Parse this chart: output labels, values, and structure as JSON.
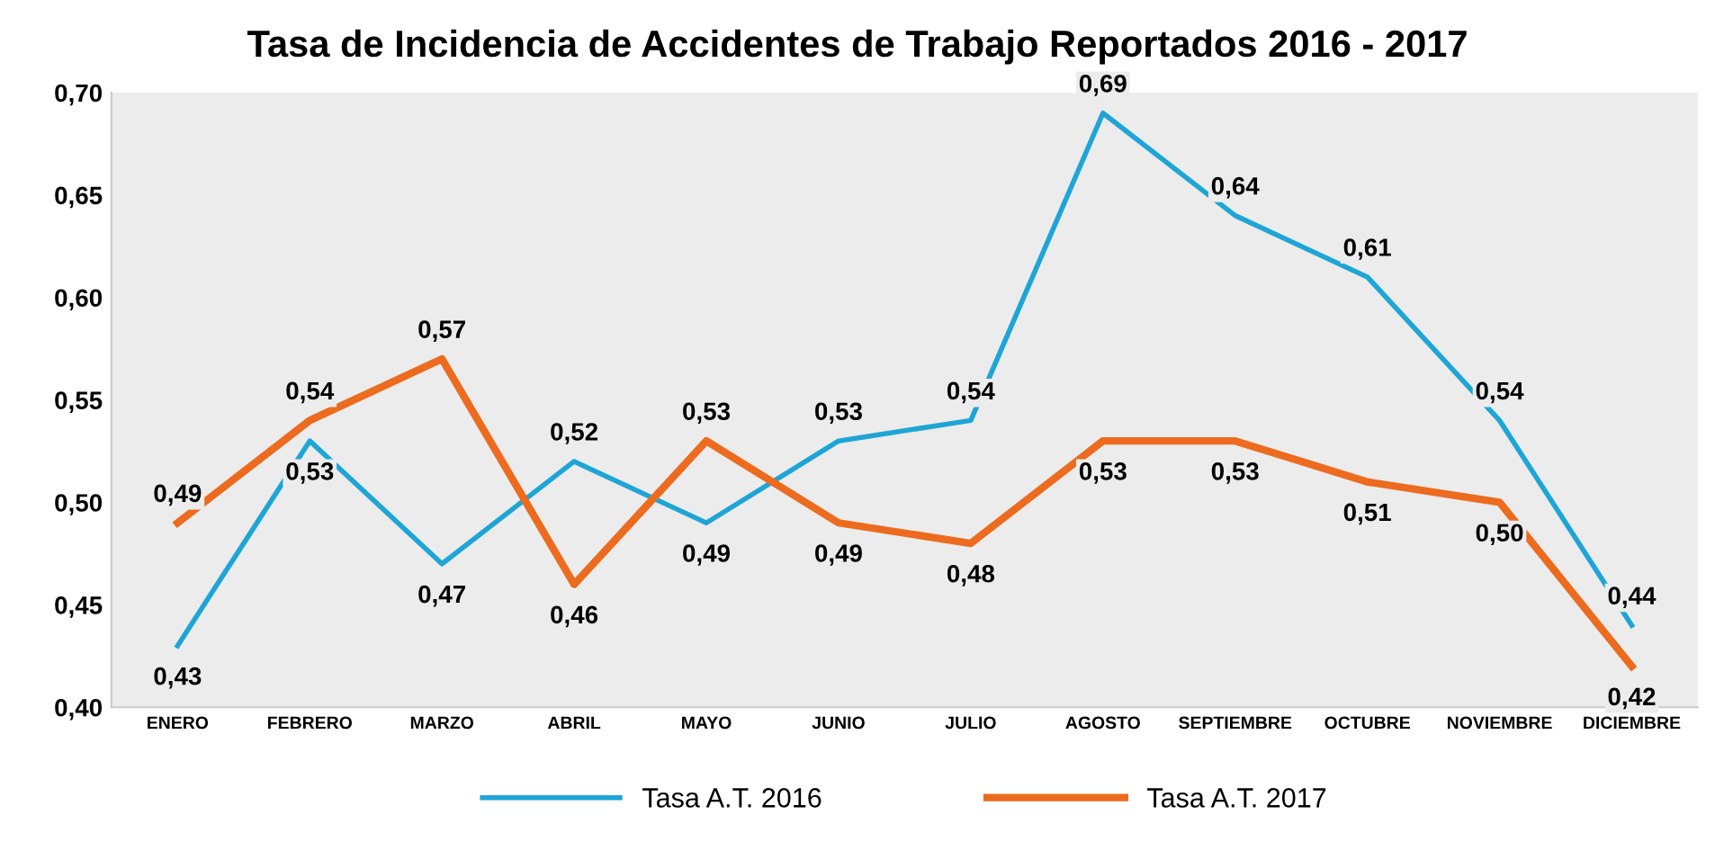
{
  "chart_data": {
    "type": "line",
    "title": "Tasa de Incidencia de Accidentes de Trabajo Reportados 2016 - 2017",
    "categories": [
      "ENERO",
      "FEBRERO",
      "MARZO",
      "ABRIL",
      "MAYO",
      "JUNIO",
      "JULIO",
      "AGOSTO",
      "SEPTIEMBRE",
      "OCTUBRE",
      "NOVIEMBRE",
      "DICIEMBRE"
    ],
    "series": [
      {
        "name": "Tasa A.T. 2016",
        "color": "#1ea5d6",
        "values": [
          0.43,
          0.53,
          0.47,
          0.52,
          0.49,
          0.53,
          0.54,
          0.69,
          0.64,
          0.61,
          0.54,
          0.44
        ],
        "value_labels": [
          "0,43",
          "0,53",
          "0,47",
          "0,52",
          "0,49",
          "0,53",
          "0,54",
          "0,69",
          "0,64",
          "0,61",
          "0,54",
          "0,44"
        ]
      },
      {
        "name": "Tasa A.T. 2017",
        "color": "#ec6b1e",
        "values": [
          0.49,
          0.54,
          0.57,
          0.46,
          0.53,
          0.49,
          0.48,
          0.53,
          0.53,
          0.51,
          0.5,
          0.42
        ],
        "value_labels": [
          "0,49",
          "0,54",
          "0,57",
          "0,46",
          "0,53",
          "0,49",
          "0,48",
          "0,53",
          "0,53",
          "0,51",
          "0,50",
          "0,42"
        ]
      }
    ],
    "ylim": [
      0.4,
      0.7
    ],
    "yticks": [
      {
        "value": 0.4,
        "label": "0,40"
      },
      {
        "value": 0.45,
        "label": "0,45"
      },
      {
        "value": 0.5,
        "label": "0,50"
      },
      {
        "value": 0.55,
        "label": "0,55"
      },
      {
        "value": 0.6,
        "label": "0,60"
      },
      {
        "value": 0.65,
        "label": "0,65"
      },
      {
        "value": 0.7,
        "label": "0,70"
      }
    ],
    "legend": "bottom",
    "grid": false,
    "marker": "none",
    "line_style": "solid"
  }
}
